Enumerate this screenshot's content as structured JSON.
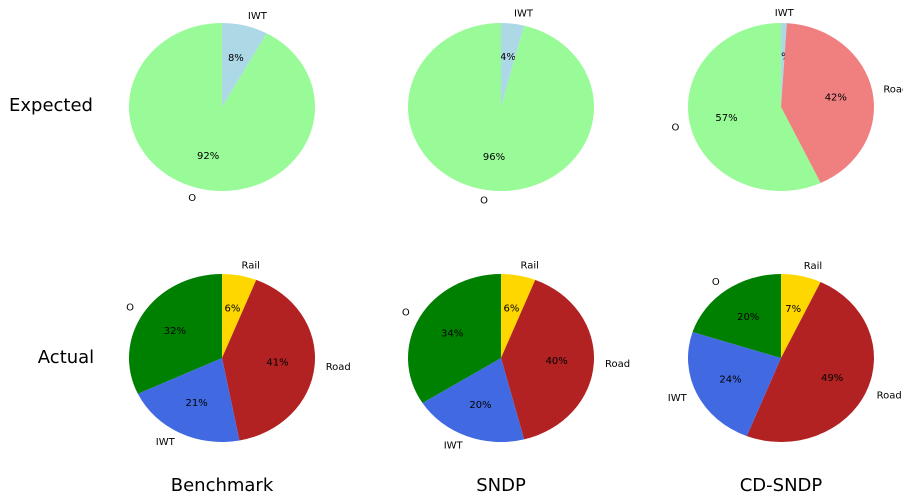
{
  "row_labels": [
    "Expected",
    "Actual"
  ],
  "column_labels": [
    "Benchmark",
    "SNDP",
    "CD-SNDP"
  ],
  "chart_data": [
    {
      "type": "pie",
      "categories": [
        "IWT",
        "O"
      ],
      "values": [
        8,
        92
      ],
      "value_labels": [
        "8%",
        "92%"
      ],
      "colors": [
        "#add8e6",
        "#98fb98"
      ]
    },
    {
      "type": "pie",
      "categories": [
        "IWT",
        "O"
      ],
      "values": [
        4,
        96
      ],
      "value_labels": [
        "4%",
        "96%"
      ],
      "colors": [
        "#add8e6",
        "#98fb98"
      ]
    },
    {
      "type": "pie",
      "categories": [
        "IWT",
        "Road",
        "O"
      ],
      "values": [
        1,
        42,
        57
      ],
      "value_labels": [
        "1%",
        "42%",
        "57%"
      ],
      "colors": [
        "#add8e6",
        "#f08080",
        "#98fb98"
      ]
    },
    {
      "type": "pie",
      "categories": [
        "Rail",
        "Road",
        "IWT",
        "O"
      ],
      "values": [
        6,
        41,
        21,
        32
      ],
      "value_labels": [
        "6%",
        "41%",
        "21%",
        "32%"
      ],
      "colors": [
        "#ffd700",
        "#b22222",
        "#4169e1",
        "#008000"
      ]
    },
    {
      "type": "pie",
      "categories": [
        "Rail",
        "Road",
        "IWT",
        "O"
      ],
      "values": [
        6,
        40,
        20,
        34
      ],
      "value_labels": [
        "6%",
        "40%",
        "20%",
        "34%"
      ],
      "colors": [
        "#ffd700",
        "#b22222",
        "#4169e1",
        "#008000"
      ]
    },
    {
      "type": "pie",
      "categories": [
        "Rail",
        "Road",
        "IWT",
        "O"
      ],
      "values": [
        7,
        49,
        24,
        20
      ],
      "value_labels": [
        "7%",
        "49%",
        "24%",
        "20%"
      ],
      "colors": [
        "#ffd700",
        "#b22222",
        "#4169e1",
        "#008000"
      ]
    }
  ]
}
